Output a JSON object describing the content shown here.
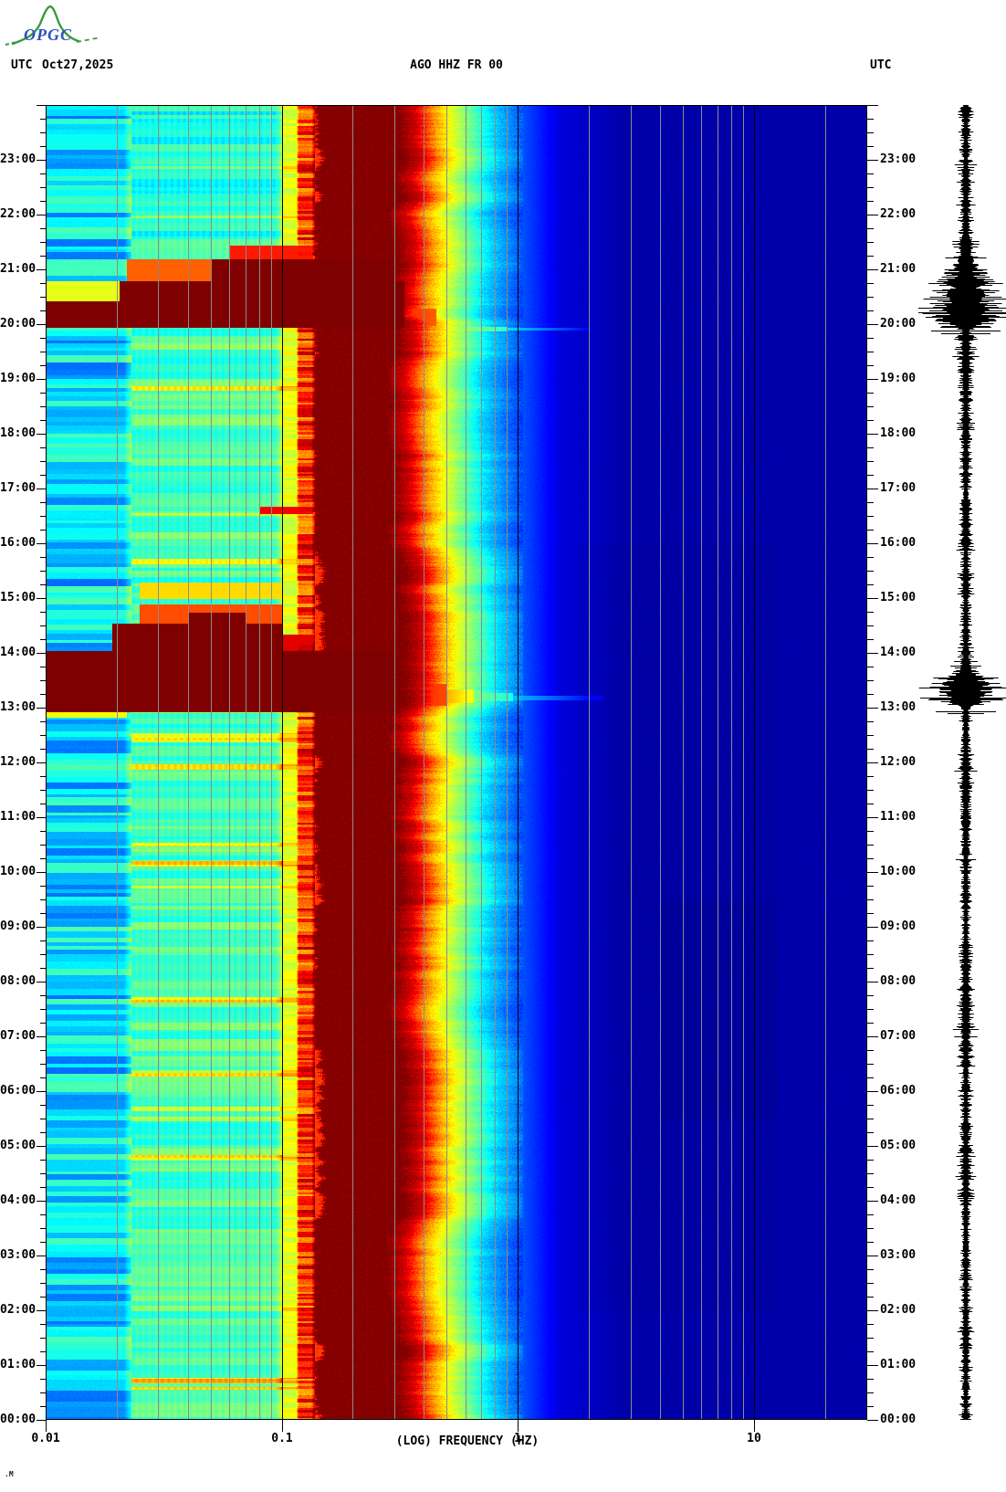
{
  "header": {
    "logo_text": "OPGC",
    "utc_left": "UTC",
    "date": "Oct27,2025",
    "title": "AGO HHZ FR 00",
    "utc_right": "UTC"
  },
  "footer": {
    "xlabel": "(LOG) FREQUENCY (HZ)",
    "corner_artifact": ".M"
  },
  "chart_data": {
    "type": "heatmap",
    "subtype": "seismic-spectrogram-with-helicorder",
    "title": "AGO HHZ FR 00",
    "station": "AGO",
    "channel": "HHZ",
    "network": "FR",
    "location": "00",
    "date": "Oct27,2025",
    "timezone": "UTC",
    "xlabel": "(LOG) FREQUENCY (HZ)",
    "x_scale": "log",
    "x_range_hz": [
      0.01,
      30
    ],
    "x_major_ticks_hz": [
      0.01,
      0.1,
      1,
      10
    ],
    "x_tick_labels": [
      "0.01",
      "0.1",
      "1",
      "10"
    ],
    "x_gridlines_hz": [
      0.02,
      0.03,
      0.04,
      0.05,
      0.06,
      0.07,
      0.08,
      0.09,
      0.2,
      0.3,
      0.4,
      0.5,
      0.6,
      0.7,
      0.8,
      0.9,
      2,
      3,
      4,
      5,
      6,
      7,
      8,
      9,
      20
    ],
    "x_black_gridlines_hz": [
      0.1,
      1,
      10
    ],
    "y_range_hours": [
      0,
      24
    ],
    "y_tick_minutes": 15,
    "hour_labels": [
      "00:00",
      "01:00",
      "02:00",
      "03:00",
      "04:00",
      "05:00",
      "06:00",
      "07:00",
      "08:00",
      "09:00",
      "10:00",
      "11:00",
      "12:00",
      "13:00",
      "14:00",
      "15:00",
      "16:00",
      "17:00",
      "18:00",
      "19:00",
      "20:00",
      "21:00",
      "22:00",
      "23:00"
    ],
    "colormap": "jet",
    "colors": {
      "grid_gray": "#8c8c8c",
      "axis_black": "#000000",
      "background": "#ffffff",
      "dark_red_band": "#8b0000",
      "navy_background": "#0000aa",
      "logo_green": "#3a9a3a",
      "logo_blue": "#2a52be",
      "waveform": "#000000"
    },
    "value_profile": [
      [
        -2.0,
        0.34
      ],
      [
        -1.67,
        0.34
      ],
      [
        -1.64,
        0.45
      ],
      [
        -1.02,
        0.46
      ],
      [
        -1.0,
        0.6
      ],
      [
        -0.94,
        0.6
      ],
      [
        -0.93,
        0.82
      ],
      [
        -0.875,
        0.82
      ],
      [
        -0.86,
        1.0
      ],
      [
        -0.52,
        1.0
      ],
      [
        -0.44,
        0.92
      ],
      [
        -0.36,
        0.72
      ],
      [
        -0.29,
        0.6
      ],
      [
        -0.21,
        0.48
      ],
      [
        -0.12,
        0.34
      ],
      [
        0.0,
        0.22
      ],
      [
        0.18,
        0.09
      ],
      [
        0.45,
        0.042
      ],
      [
        1.5,
        0.042
      ]
    ],
    "events": [
      {
        "t0": 19.95,
        "t1": 20.42,
        "f0": 0.01,
        "f1": 0.33,
        "v0": 1,
        "v1": 1
      },
      {
        "t0": 20.42,
        "t1": 20.8,
        "f0": 0.0205,
        "f1": 0.33,
        "v0": 1,
        "v1": 1
      },
      {
        "t0": 20.42,
        "t1": 20.8,
        "f0": 0.01,
        "f1": 0.0205,
        "v0": 0.6,
        "v1": 0.6
      },
      {
        "t0": 20.8,
        "t1": 21.2,
        "f0": 0.05,
        "f1": 0.3,
        "v0": 1,
        "v1": 1
      },
      {
        "t0": 20.8,
        "t1": 21.2,
        "f0": 0.022,
        "f1": 0.05,
        "v0": 0.78,
        "v1": 0.78
      },
      {
        "t0": 21.2,
        "t1": 21.45,
        "f0": 0.06,
        "f1": 0.135,
        "v0": 0.85,
        "v1": 0.85
      },
      {
        "t0": 19.97,
        "t1": 20.3,
        "f0": 0.3,
        "f1": 0.45,
        "v0": 0.86,
        "v1": 0.78
      },
      {
        "t0": 19.88,
        "t1": 19.96,
        "f0": 0.3,
        "f1": 0.9,
        "v0": 0.7,
        "v1": 0.42
      },
      {
        "t0": 19.9,
        "t1": 19.94,
        "f0": 0.9,
        "f1": 2.0,
        "v0": 0.35,
        "v1": 0.12
      },
      {
        "t0": 12.93,
        "t1": 14.05,
        "f0": 0.01,
        "f1": 0.3,
        "v0": 1,
        "v1": 1
      },
      {
        "t0": 13.05,
        "t1": 13.45,
        "f0": 0.3,
        "f1": 0.5,
        "v0": 0.88,
        "v1": 0.8
      },
      {
        "t0": 13.1,
        "t1": 13.35,
        "f0": 0.5,
        "f1": 0.65,
        "v0": 0.7,
        "v1": 0.6
      },
      {
        "t0": 13.12,
        "t1": 13.28,
        "f0": 0.65,
        "f1": 0.95,
        "v0": 0.5,
        "v1": 0.4
      },
      {
        "t0": 13.15,
        "t1": 13.22,
        "f0": 0.95,
        "f1": 2.3,
        "v0": 0.32,
        "v1": 0.1
      },
      {
        "t0": 12.83,
        "t1": 12.93,
        "f0": 0.01,
        "f1": 0.022,
        "v0": 0.62,
        "v1": 0.62
      },
      {
        "t0": 12.86,
        "t1": 12.91,
        "f0": 0.3,
        "f1": 1.2,
        "v0": 0.5,
        "v1": 0.15
      },
      {
        "t0": 14.05,
        "t1": 14.55,
        "f0": 0.019,
        "f1": 0.1,
        "v0": 1,
        "v1": 1
      },
      {
        "t0": 14.05,
        "t1": 14.35,
        "f0": 0.1,
        "f1": 0.135,
        "v0": 0.9,
        "v1": 0.9
      },
      {
        "t0": 14.55,
        "t1": 14.75,
        "f0": 0.04,
        "f1": 0.07,
        "v0": 1,
        "v1": 1
      },
      {
        "t0": 14.55,
        "t1": 14.9,
        "f0": 0.025,
        "f1": 0.1,
        "v0": 0.8,
        "v1": 0.8
      },
      {
        "t0": 15.0,
        "t1": 15.3,
        "f0": 0.025,
        "f1": 0.1,
        "v0": 0.66,
        "v1": 0.66
      },
      {
        "t0": 16.55,
        "t1": 16.68,
        "f0": 0.08,
        "f1": 0.135,
        "v0": 0.88,
        "v1": 0.88
      }
    ],
    "waveform": {
      "base_segments": [
        {
          "t0": 0,
          "t1": 13,
          "amp": 6
        },
        {
          "t0": 13,
          "t1": 14,
          "amp": 8
        },
        {
          "t0": 14,
          "t1": 20,
          "amp": 7
        },
        {
          "t0": 20,
          "t1": 21.5,
          "amp": 8
        },
        {
          "t0": 21.5,
          "t1": 24,
          "amp": 6.5
        }
      ],
      "bursts": [
        {
          "t": 20.07,
          "amp": 40,
          "sigma_up": 0.5,
          "sigma_down": 0.07
        },
        {
          "t": 13.2,
          "amp": 34,
          "sigma_up": 0.3,
          "sigma_down": 0.09
        }
      ],
      "flat_lines": [
        {
          "t": 19.88,
          "half_width": 38
        },
        {
          "t": 19.83,
          "half_width": 27
        },
        {
          "t": 12.94,
          "half_width": 33
        },
        {
          "t": 12.9,
          "half_width": 20
        }
      ]
    }
  }
}
